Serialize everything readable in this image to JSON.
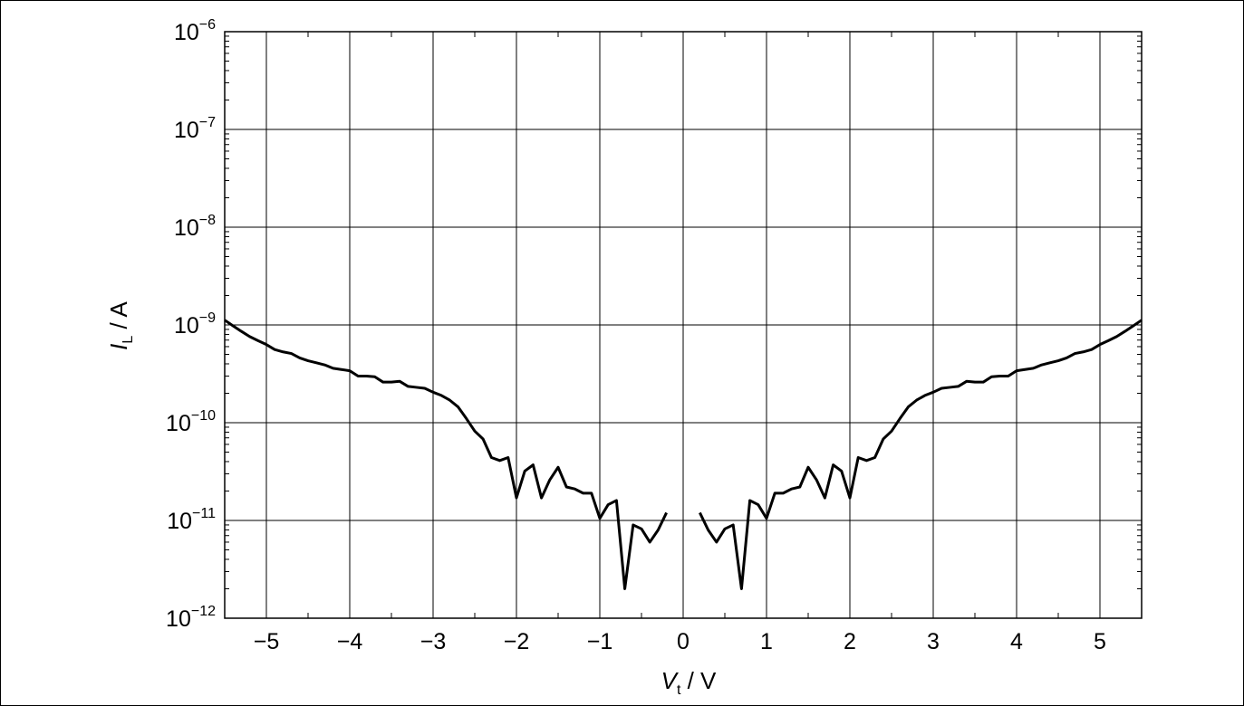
{
  "chart_data": {
    "type": "line",
    "xlabel": {
      "var": "V",
      "sub": "t",
      "unit": " / V"
    },
    "ylabel": {
      "var": "I",
      "sub": "L",
      "unit": " / A"
    },
    "xlim": [
      -5.5,
      5.5
    ],
    "ylim": [
      1e-12,
      1e-06
    ],
    "yscale": "log",
    "grid": true,
    "x_ticks": [
      -5,
      -4,
      -3,
      -2,
      -1,
      0,
      1,
      2,
      3,
      4,
      5
    ],
    "x_tick_labels": [
      "−5",
      "−4",
      "−3",
      "−2",
      "−1",
      "0",
      "1",
      "2",
      "3",
      "4",
      "5"
    ],
    "y_ticks": [
      {
        "value": 1e-12,
        "base": "10",
        "exp": "−12"
      },
      {
        "value": 1e-11,
        "base": "10",
        "exp": "−11"
      },
      {
        "value": 1e-10,
        "base": "10",
        "exp": "−10"
      },
      {
        "value": 1e-09,
        "base": "10",
        "exp": "−9"
      },
      {
        "value": 1e-08,
        "base": "10",
        "exp": "−8"
      },
      {
        "value": 1e-07,
        "base": "10",
        "exp": "−7"
      },
      {
        "value": 1e-06,
        "base": "10",
        "exp": "−6"
      }
    ],
    "series": [
      {
        "color": "#000000",
        "segments": [
          {
            "x": [
              -5.5,
              -5.4,
              -5.3,
              -5.2,
              -5.1,
              -5.0,
              -4.9,
              -4.8,
              -4.7,
              -4.6,
              -4.5,
              -4.4,
              -4.3,
              -4.2,
              -4.1,
              -4.0,
              -3.9,
              -3.8,
              -3.7,
              -3.6,
              -3.5,
              -3.4,
              -3.3,
              -3.2,
              -3.1,
              -3.0,
              -2.9,
              -2.8,
              -2.7,
              -2.6,
              -2.5,
              -2.4,
              -2.3,
              -2.2,
              -2.1,
              -2.0,
              -1.9,
              -1.8,
              -1.7,
              -1.6,
              -1.5,
              -1.4,
              -1.3,
              -1.2,
              -1.1,
              -1.0,
              -0.9,
              -0.8,
              -0.7,
              -0.6,
              -0.5,
              -0.4,
              -0.3,
              -0.2
            ],
            "y": [
              1.12e-09,
              9.8e-10,
              8.6e-10,
              7.6e-10,
              6.9e-10,
              6.3e-10,
              5.6e-10,
              5.3e-10,
              5.1e-10,
              4.6e-10,
              4.3e-10,
              4.1e-10,
              3.9e-10,
              3.6e-10,
              3.5e-10,
              3.4e-10,
              3e-10,
              3e-10,
              2.95e-10,
              2.6e-10,
              2.6e-10,
              2.65e-10,
              2.35e-10,
              2.3e-10,
              2.25e-10,
              2.05e-10,
              1.9e-10,
              1.7e-10,
              1.45e-10,
              1.1e-10,
              8.2e-11,
              6.8e-11,
              4.4e-11,
              4.1e-11,
              4.4e-11,
              1.7e-11,
              3.2e-11,
              3.7e-11,
              1.7e-11,
              2.6e-11,
              3.5e-11,
              2.2e-11,
              2.1e-11,
              1.9e-11,
              1.9e-11,
              1.05e-11,
              1.45e-11,
              1.6e-11,
              2e-12,
              9e-12,
              8.2e-12,
              6e-12,
              8e-12,
              1.2e-11
            ]
          },
          {
            "x": [
              0.2,
              0.3,
              0.4,
              0.5,
              0.6,
              0.7,
              0.8,
              0.9,
              1.0,
              1.1,
              1.2,
              1.3,
              1.4,
              1.5,
              1.6,
              1.7,
              1.8,
              1.9,
              2.0,
              2.1,
              2.2,
              2.3,
              2.4,
              2.5,
              2.6,
              2.7,
              2.8,
              2.9,
              3.0,
              3.1,
              3.2,
              3.3,
              3.4,
              3.5,
              3.6,
              3.7,
              3.8,
              3.9,
              4.0,
              4.1,
              4.2,
              4.3,
              4.4,
              4.5,
              4.6,
              4.7,
              4.8,
              4.9,
              5.0,
              5.1,
              5.2,
              5.3,
              5.4,
              5.5
            ],
            "y": [
              1.2e-11,
              8e-12,
              6e-12,
              8.2e-12,
              9e-12,
              2e-12,
              1.6e-11,
              1.45e-11,
              1.05e-11,
              1.9e-11,
              1.9e-11,
              2.1e-11,
              2.2e-11,
              3.5e-11,
              2.6e-11,
              1.7e-11,
              3.7e-11,
              3.2e-11,
              1.7e-11,
              4.4e-11,
              4.1e-11,
              4.4e-11,
              6.8e-11,
              8.2e-11,
              1.1e-10,
              1.45e-10,
              1.7e-10,
              1.9e-10,
              2.05e-10,
              2.25e-10,
              2.3e-10,
              2.35e-10,
              2.65e-10,
              2.6e-10,
              2.6e-10,
              2.95e-10,
              3e-10,
              3e-10,
              3.4e-10,
              3.5e-10,
              3.6e-10,
              3.9e-10,
              4.1e-10,
              4.3e-10,
              4.6e-10,
              5.1e-10,
              5.3e-10,
              5.6e-10,
              6.3e-10,
              6.9e-10,
              7.6e-10,
              8.6e-10,
              9.8e-10,
              1.12e-09
            ]
          }
        ]
      }
    ]
  }
}
